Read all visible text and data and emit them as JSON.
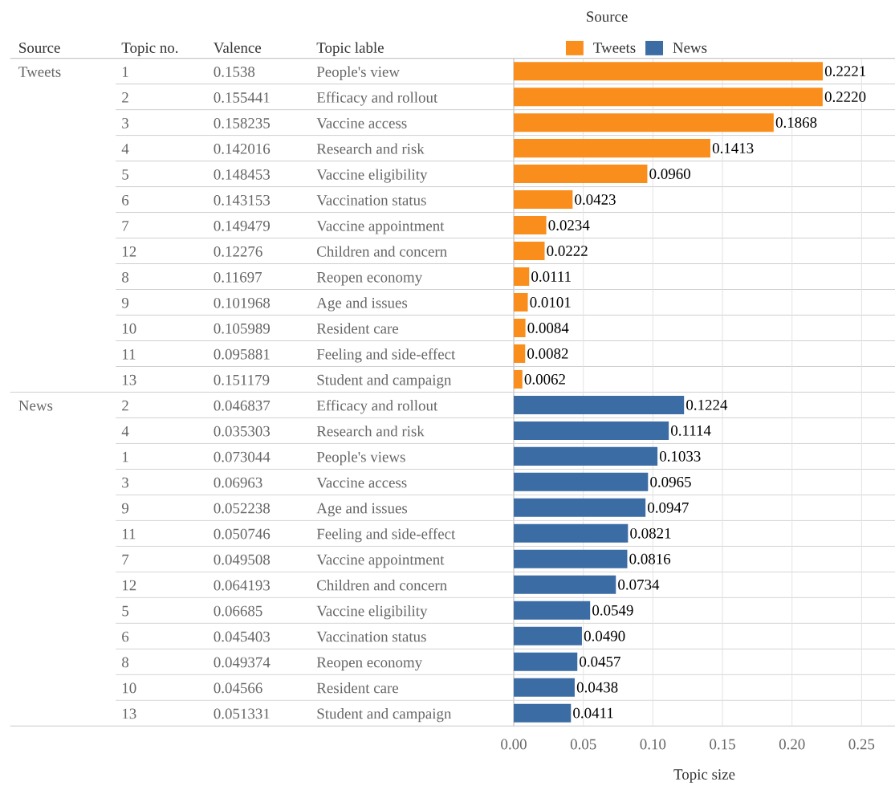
{
  "chart_data": {
    "type": "bar",
    "orientation": "horizontal",
    "ylabel": "Topic lable",
    "xlabel": "Topic size",
    "legend_title": "Source",
    "legend": "top",
    "grid": "x",
    "categories": [
      "People's view",
      "Efficacy and rollout",
      "Vaccine access",
      "Research and risk",
      "Vaccine eligibility",
      "Vaccination status",
      "Vaccine appointment",
      "Children and concern",
      "Reopen economy",
      "Age and issues",
      "Resident care",
      "Feeling and side-effect",
      "Student and campaign",
      "Efficacy and rollout",
      "Research and risk",
      "People's views",
      "Vaccine access",
      "Age and issues",
      "Feeling and side-effect",
      "Vaccine appointment",
      "Children and concern",
      "Vaccine eligibility",
      "Vaccination status",
      "Reopen economy",
      "Resident care",
      "Student and campaign"
    ],
    "series": [
      {
        "name": "Tweets",
        "color": "#f98e1d",
        "values": [
          0.2221,
          0.222,
          0.1868,
          0.1413,
          0.096,
          0.0423,
          0.0234,
          0.0222,
          0.0111,
          0.0101,
          0.0084,
          0.0082,
          0.0062,
          null,
          null,
          null,
          null,
          null,
          null,
          null,
          null,
          null,
          null,
          null,
          null,
          null
        ],
        "value_labels": [
          "0.2221",
          "0.2220",
          "0.1868",
          "0.1413",
          "0.0960",
          "0.0423",
          "0.0234",
          "0.0222",
          "0.0111",
          "0.0101",
          "0.0084",
          "0.0082",
          "0.0062",
          null,
          null,
          null,
          null,
          null,
          null,
          null,
          null,
          null,
          null,
          null,
          null,
          null
        ]
      },
      {
        "name": "News",
        "color": "#3b6ca4",
        "values": [
          null,
          null,
          null,
          null,
          null,
          null,
          null,
          null,
          null,
          null,
          null,
          null,
          null,
          0.1224,
          0.1114,
          0.1033,
          0.0965,
          0.0947,
          0.0821,
          0.0816,
          0.0734,
          0.0549,
          0.049,
          0.0457,
          0.0438,
          0.0411
        ],
        "value_labels": [
          null,
          null,
          null,
          null,
          null,
          null,
          null,
          null,
          null,
          null,
          null,
          null,
          null,
          "0.1224",
          "0.1114",
          "0.1033",
          "0.0965",
          "0.0947",
          "0.0821",
          "0.0816",
          "0.0734",
          "0.0549",
          "0.0490",
          "0.0457",
          "0.0438",
          "0.0411"
        ]
      }
    ],
    "xlim": [
      0,
      0.274
    ],
    "xticks": [
      {
        "value": 0,
        "label": "0.00"
      },
      {
        "value": 0.05,
        "label": "0.05"
      },
      {
        "value": 0.1,
        "label": "0.10"
      },
      {
        "value": 0.15,
        "label": "0.15"
      },
      {
        "value": 0.2,
        "label": "0.20"
      },
      {
        "value": 0.25,
        "label": "0.25"
      }
    ],
    "annotations": [
      "Source",
      "Topic no.",
      "Valence",
      "Tweets",
      "News",
      "1",
      "0.1538",
      "2",
      "0.155441",
      "3",
      "0.158235",
      "4",
      "0.142016",
      "5",
      "0.148453",
      "6",
      "0.143153",
      "7",
      "0.149479",
      "12",
      "0.12276",
      "8",
      "0.11697",
      "9",
      "0.101968",
      "10",
      "0.105989",
      "11",
      "0.095881",
      "13",
      "0.151179",
      "2",
      "0.046837",
      "4",
      "0.035303",
      "1",
      "0.073044",
      "3",
      "0.06963",
      "9",
      "0.052238",
      "11",
      "0.050746",
      "7",
      "0.049508",
      "12",
      "0.064193",
      "5",
      "0.06685",
      "6",
      "0.045403",
      "8",
      "0.049374",
      "10",
      "0.04566",
      "13",
      "0.051331"
    ]
  }
}
